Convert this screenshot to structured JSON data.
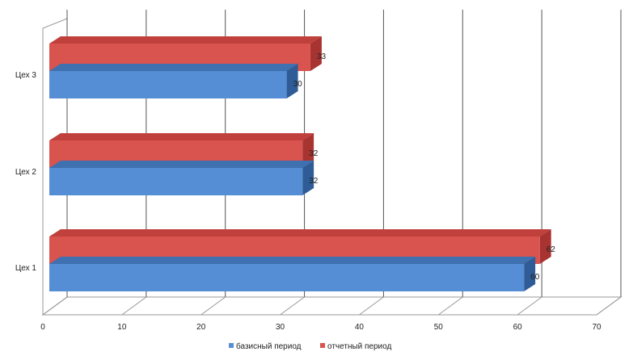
{
  "chart_data": {
    "type": "bar",
    "orientation": "horizontal",
    "three_d": true,
    "categories": [
      "Цех 1",
      "Цех 2",
      "Цех 3"
    ],
    "series": [
      {
        "name": "базисный период",
        "values": [
          60,
          32,
          30
        ],
        "color": "#558ed5",
        "top_color": "#3f70b0",
        "side_color": "#2f5c96"
      },
      {
        "name": "отчетный период",
        "values": [
          62,
          32,
          33
        ],
        "color": "#d9534f",
        "top_color": "#c0403c",
        "side_color": "#a83432"
      }
    ],
    "xlim": [
      0,
      70
    ],
    "x_ticks": [
      "0",
      "10",
      "20",
      "30",
      "40",
      "50",
      "60",
      "70"
    ],
    "grid": true,
    "legend": "bottom-center",
    "data_labels": true
  }
}
